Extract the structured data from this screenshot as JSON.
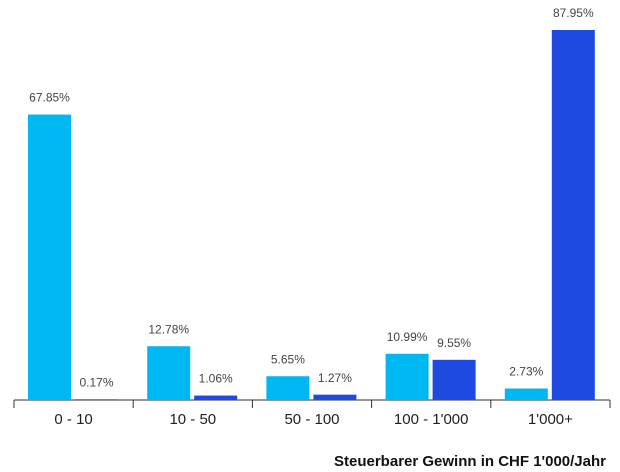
{
  "chart_data": {
    "type": "bar",
    "x_label": "Steuerbarer Gewinn in CHF 1'000/Jahr",
    "categories": [
      "0 - 10",
      "10 - 50",
      "50 - 100",
      "100 - 1'000",
      "1'000+"
    ],
    "series": [
      {
        "color": "#00b8f1",
        "values": [
          67.85,
          12.78,
          5.65,
          10.99,
          2.73
        ],
        "value_labels": [
          "67.85%",
          "12.78%",
          "5.65%",
          "10.99%",
          "2.73%"
        ]
      },
      {
        "color": "#1f4ae0",
        "values": [
          0.17,
          1.06,
          1.27,
          9.55,
          87.95
        ],
        "value_labels": [
          "0.17%",
          "1.06%",
          "1.27%",
          "9.55%",
          "87.95%"
        ]
      }
    ]
  }
}
